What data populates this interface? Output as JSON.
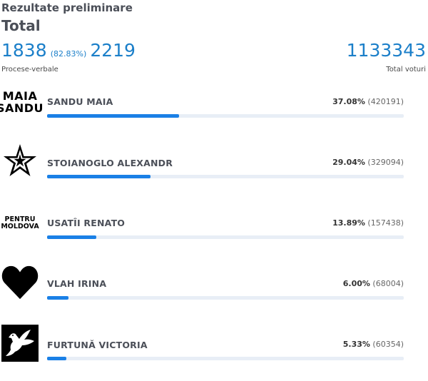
{
  "header": {
    "subtitle": "Rezultate preliminare",
    "title": "Total"
  },
  "stats": {
    "processed": "1838",
    "processed_pct": "(82.83%)",
    "total_pv": "2219",
    "pv_label": "Procese-verbale",
    "total_votes": "1133343",
    "votes_label": "Total voturi"
  },
  "candidates": [
    {
      "name": "SANDU MAIA",
      "percent": "37.08%",
      "votes": "(420191)",
      "share": 37.08,
      "logo": "maia-sandu-logo",
      "logo_text": [
        "MAIA",
        "SANDU"
      ]
    },
    {
      "name": "STOIANOGLO ALEXANDR",
      "percent": "29.04%",
      "votes": "(329094)",
      "share": 29.04,
      "logo": "star-icon"
    },
    {
      "name": "USATÎI RENATO",
      "percent": "13.89%",
      "votes": "(157438)",
      "share": 13.89,
      "logo": "pentru-moldova-logo",
      "logo_text": [
        "PENTRU",
        "MOLDOVA"
      ]
    },
    {
      "name": "VLAH IRINA",
      "percent": "6.00%",
      "votes": "(68004)",
      "share": 6.0,
      "logo": "heart-icon"
    },
    {
      "name": "FURTUNĂ VICTORIA",
      "percent": "5.33%",
      "votes": "(60354)",
      "share": 5.33,
      "logo": "dove-icon"
    }
  ],
  "colors": {
    "accent": "#1b7fc9",
    "bar": "#1a80e6",
    "track": "#e8eef6"
  }
}
